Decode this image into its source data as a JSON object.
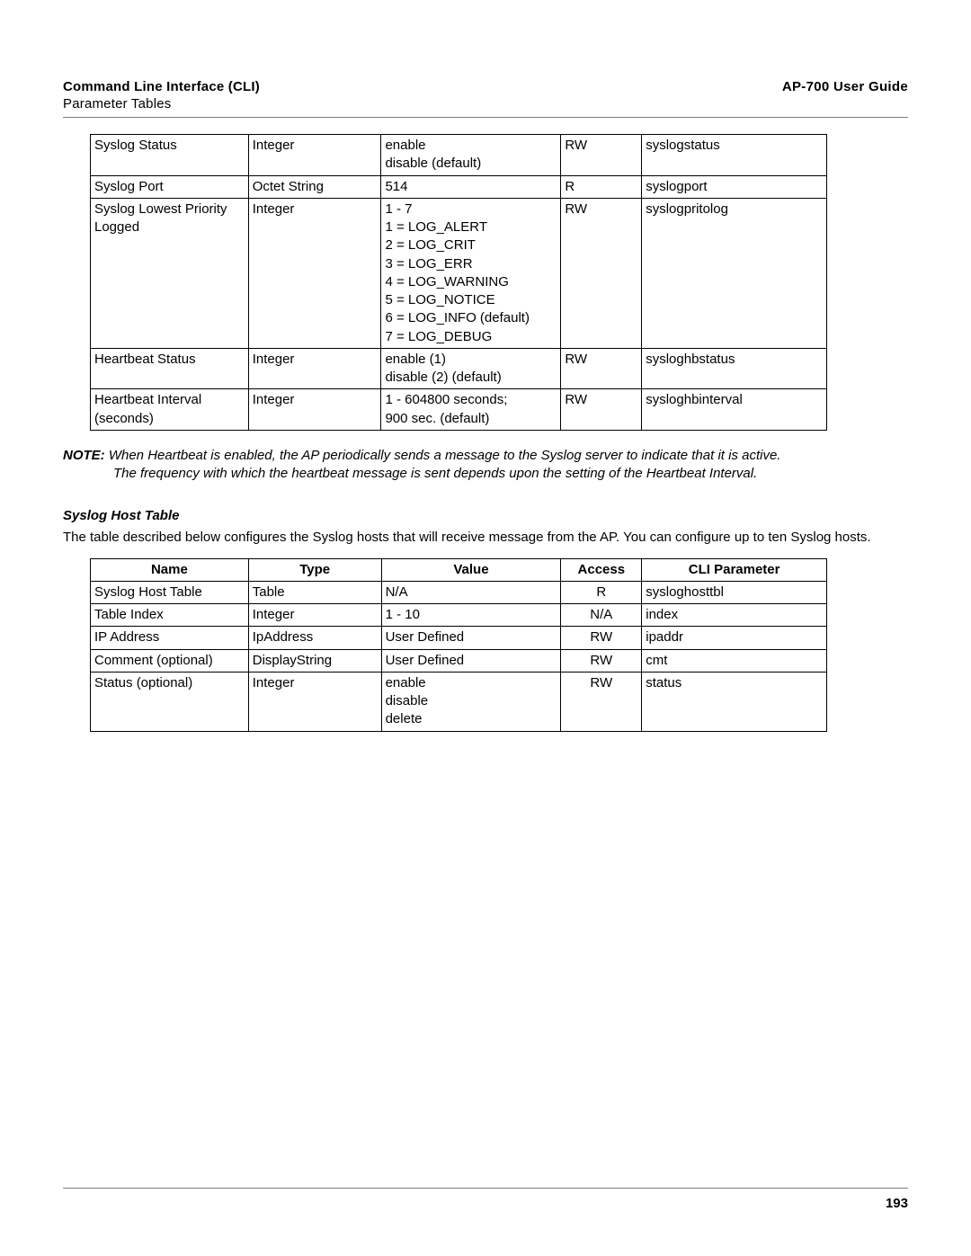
{
  "header": {
    "left_title": "Command Line Interface (CLI)",
    "left_sub": "Parameter Tables",
    "right": "AP-700 User Guide"
  },
  "table1": {
    "rows": [
      {
        "name": "Syslog Status",
        "type": "Integer",
        "value": [
          "enable",
          "disable (default)"
        ],
        "access": "RW",
        "access_align": "left",
        "cli": "syslogstatus"
      },
      {
        "name": "Syslog Port",
        "type": "Octet String",
        "value": [
          "514"
        ],
        "access": "R",
        "access_align": "left",
        "cli": "syslogport"
      },
      {
        "name": "Syslog Lowest Priority Logged",
        "type": "Integer",
        "value": [
          "1 - 7",
          "1 = LOG_ALERT",
          "2 = LOG_CRIT",
          "3 = LOG_ERR",
          "4 = LOG_WARNING",
          "5 = LOG_NOTICE",
          "6 = LOG_INFO (default)",
          "7 = LOG_DEBUG"
        ],
        "access": "RW",
        "access_align": "left",
        "cli": "syslogpritolog"
      },
      {
        "name": "Heartbeat Status",
        "type": "Integer",
        "value": [
          "enable (1)",
          "disable (2) (default)"
        ],
        "access": "RW",
        "access_align": "left",
        "cli": "sysloghbstatus"
      },
      {
        "name": "Heartbeat Interval (seconds)",
        "type": "Integer",
        "value": [
          "1 - 604800 seconds;",
          "900 sec. (default)"
        ],
        "access": "RW",
        "access_align": "left",
        "cli": "sysloghbinterval"
      }
    ]
  },
  "note": {
    "label": "NOTE:",
    "line1": "When Heartbeat is enabled, the AP periodically sends a message to the Syslog server to indicate that it is active.",
    "line2": "The frequency with which the heartbeat message is sent depends upon the setting of the Heartbeat Interval."
  },
  "subheading": "Syslog Host Table",
  "paragraph": "The table described below configures the Syslog hosts that will receive message from the AP. You can configure up to ten Syslog hosts.",
  "table2": {
    "headers": [
      "Name",
      "Type",
      "Value",
      "Access",
      "CLI Parameter"
    ],
    "rows": [
      {
        "name": "Syslog Host Table",
        "type": "Table",
        "value": [
          "N/A"
        ],
        "access": "R",
        "access_align": "center",
        "cli": "sysloghosttbl"
      },
      {
        "name": "Table Index",
        "type": "Integer",
        "value": [
          "1 - 10"
        ],
        "access": "N/A",
        "access_align": "center",
        "cli": "index"
      },
      {
        "name": "IP Address",
        "type": "IpAddress",
        "value": [
          "User Defined"
        ],
        "access": "RW",
        "access_align": "center",
        "cli": "ipaddr"
      },
      {
        "name": "Comment (optional)",
        "type": "DisplayString",
        "value": [
          "User Defined"
        ],
        "access": "RW",
        "access_align": "center",
        "cli": "cmt"
      },
      {
        "name": "Status (optional)",
        "type": "Integer",
        "value": [
          "enable",
          "disable",
          "delete"
        ],
        "access": "RW",
        "access_align": "center",
        "cli": "status"
      }
    ]
  },
  "page_number": "193"
}
